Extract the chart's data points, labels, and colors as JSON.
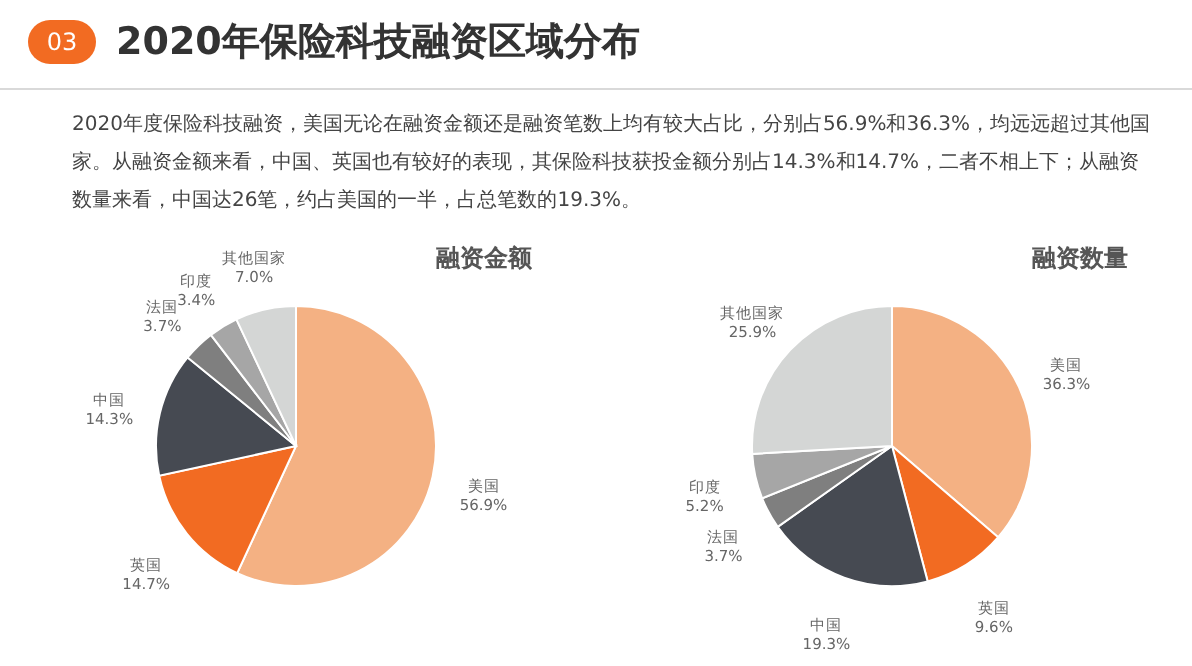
{
  "chart_data": [
    {
      "type": "other",
      "title": "2020年保险科技融资区域分布",
      "subtitle": "2020年度保险科技融资，美国无论在融资金额还是融资笔数上均有较大占比，分别占56.9%和36.3%，均远远超过其他国家。从融资金额来看，中国、英国也有较好的表现，其保险科技获投金额分别占14.3%和14.7%，二者不相上下；从融资数量来看，中国达26笔，约占美国的一半，占总笔数的19.3%。",
      "annotations": [
        "03"
      ]
    },
    {
      "type": "pie",
      "title": "融资金额",
      "categories": [
        "美国",
        "英国",
        "中国",
        "法国",
        "印度",
        "其他国家"
      ],
      "values": [
        56.9,
        14.7,
        14.3,
        3.7,
        3.4,
        7.0
      ],
      "value_labels": [
        "56.9%",
        "14.7%",
        "14.3%",
        "3.7%",
        "3.4%",
        "7.0%"
      ],
      "colors": [
        "#f4b183",
        "#f26b22",
        "#464a52",
        "#7f7f7f",
        "#a6a6a6",
        "#d4d6d5"
      ]
    },
    {
      "type": "pie",
      "title": "融资数量",
      "categories": [
        "美国",
        "英国",
        "中国",
        "法国",
        "印度",
        "其他国家"
      ],
      "values": [
        36.3,
        9.6,
        19.3,
        3.7,
        5.2,
        25.9
      ],
      "value_labels": [
        "36.3%",
        "9.6%",
        "19.3%",
        "3.7%",
        "5.2%",
        "25.9%"
      ],
      "colors": [
        "#f4b183",
        "#f26b22",
        "#464a52",
        "#7f7f7f",
        "#a6a6a6",
        "#d4d6d5"
      ]
    }
  ]
}
